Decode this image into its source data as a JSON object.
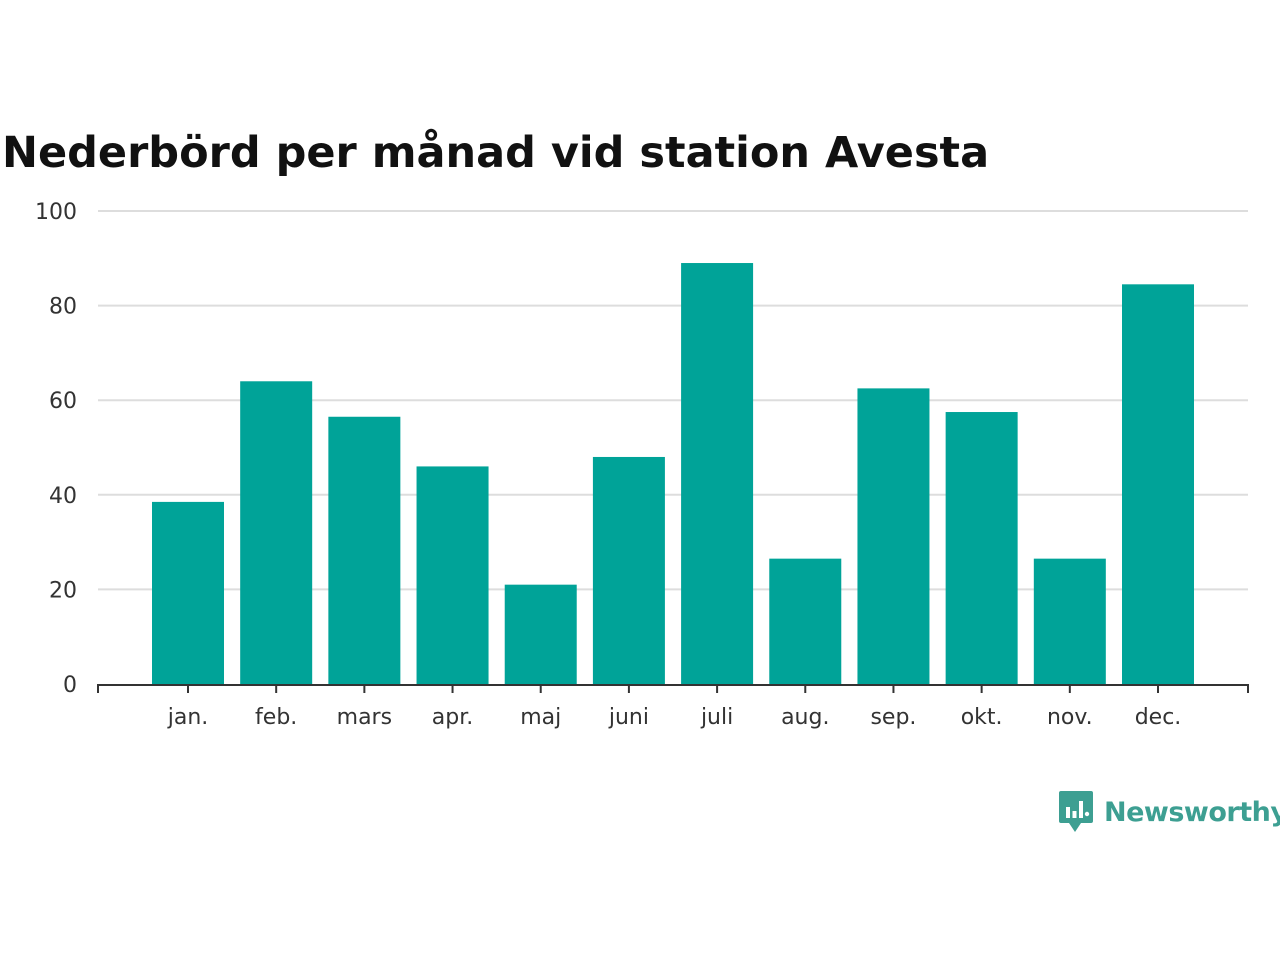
{
  "title": "Nederbörd per månad vid station Avesta",
  "brand": {
    "name": "Newsworthy",
    "color": "#3d9f92"
  },
  "colors": {
    "bar": "#00a398",
    "grid": "#dddddd",
    "axis": "#333333"
  },
  "chart_data": {
    "type": "bar",
    "title": "Nederbörd per månad vid station Avesta",
    "xlabel": "",
    "ylabel": "",
    "ylim": [
      0,
      100
    ],
    "yticks": [
      0,
      20,
      40,
      60,
      80,
      100
    ],
    "grid": true,
    "categories": [
      "jan.",
      "feb.",
      "mars",
      "apr.",
      "maj",
      "juni",
      "juli",
      "aug.",
      "sep.",
      "okt.",
      "nov.",
      "dec."
    ],
    "values": [
      38.5,
      64,
      56.5,
      46,
      21,
      48,
      89,
      26.5,
      62.5,
      57.5,
      26.5,
      84.5
    ]
  }
}
